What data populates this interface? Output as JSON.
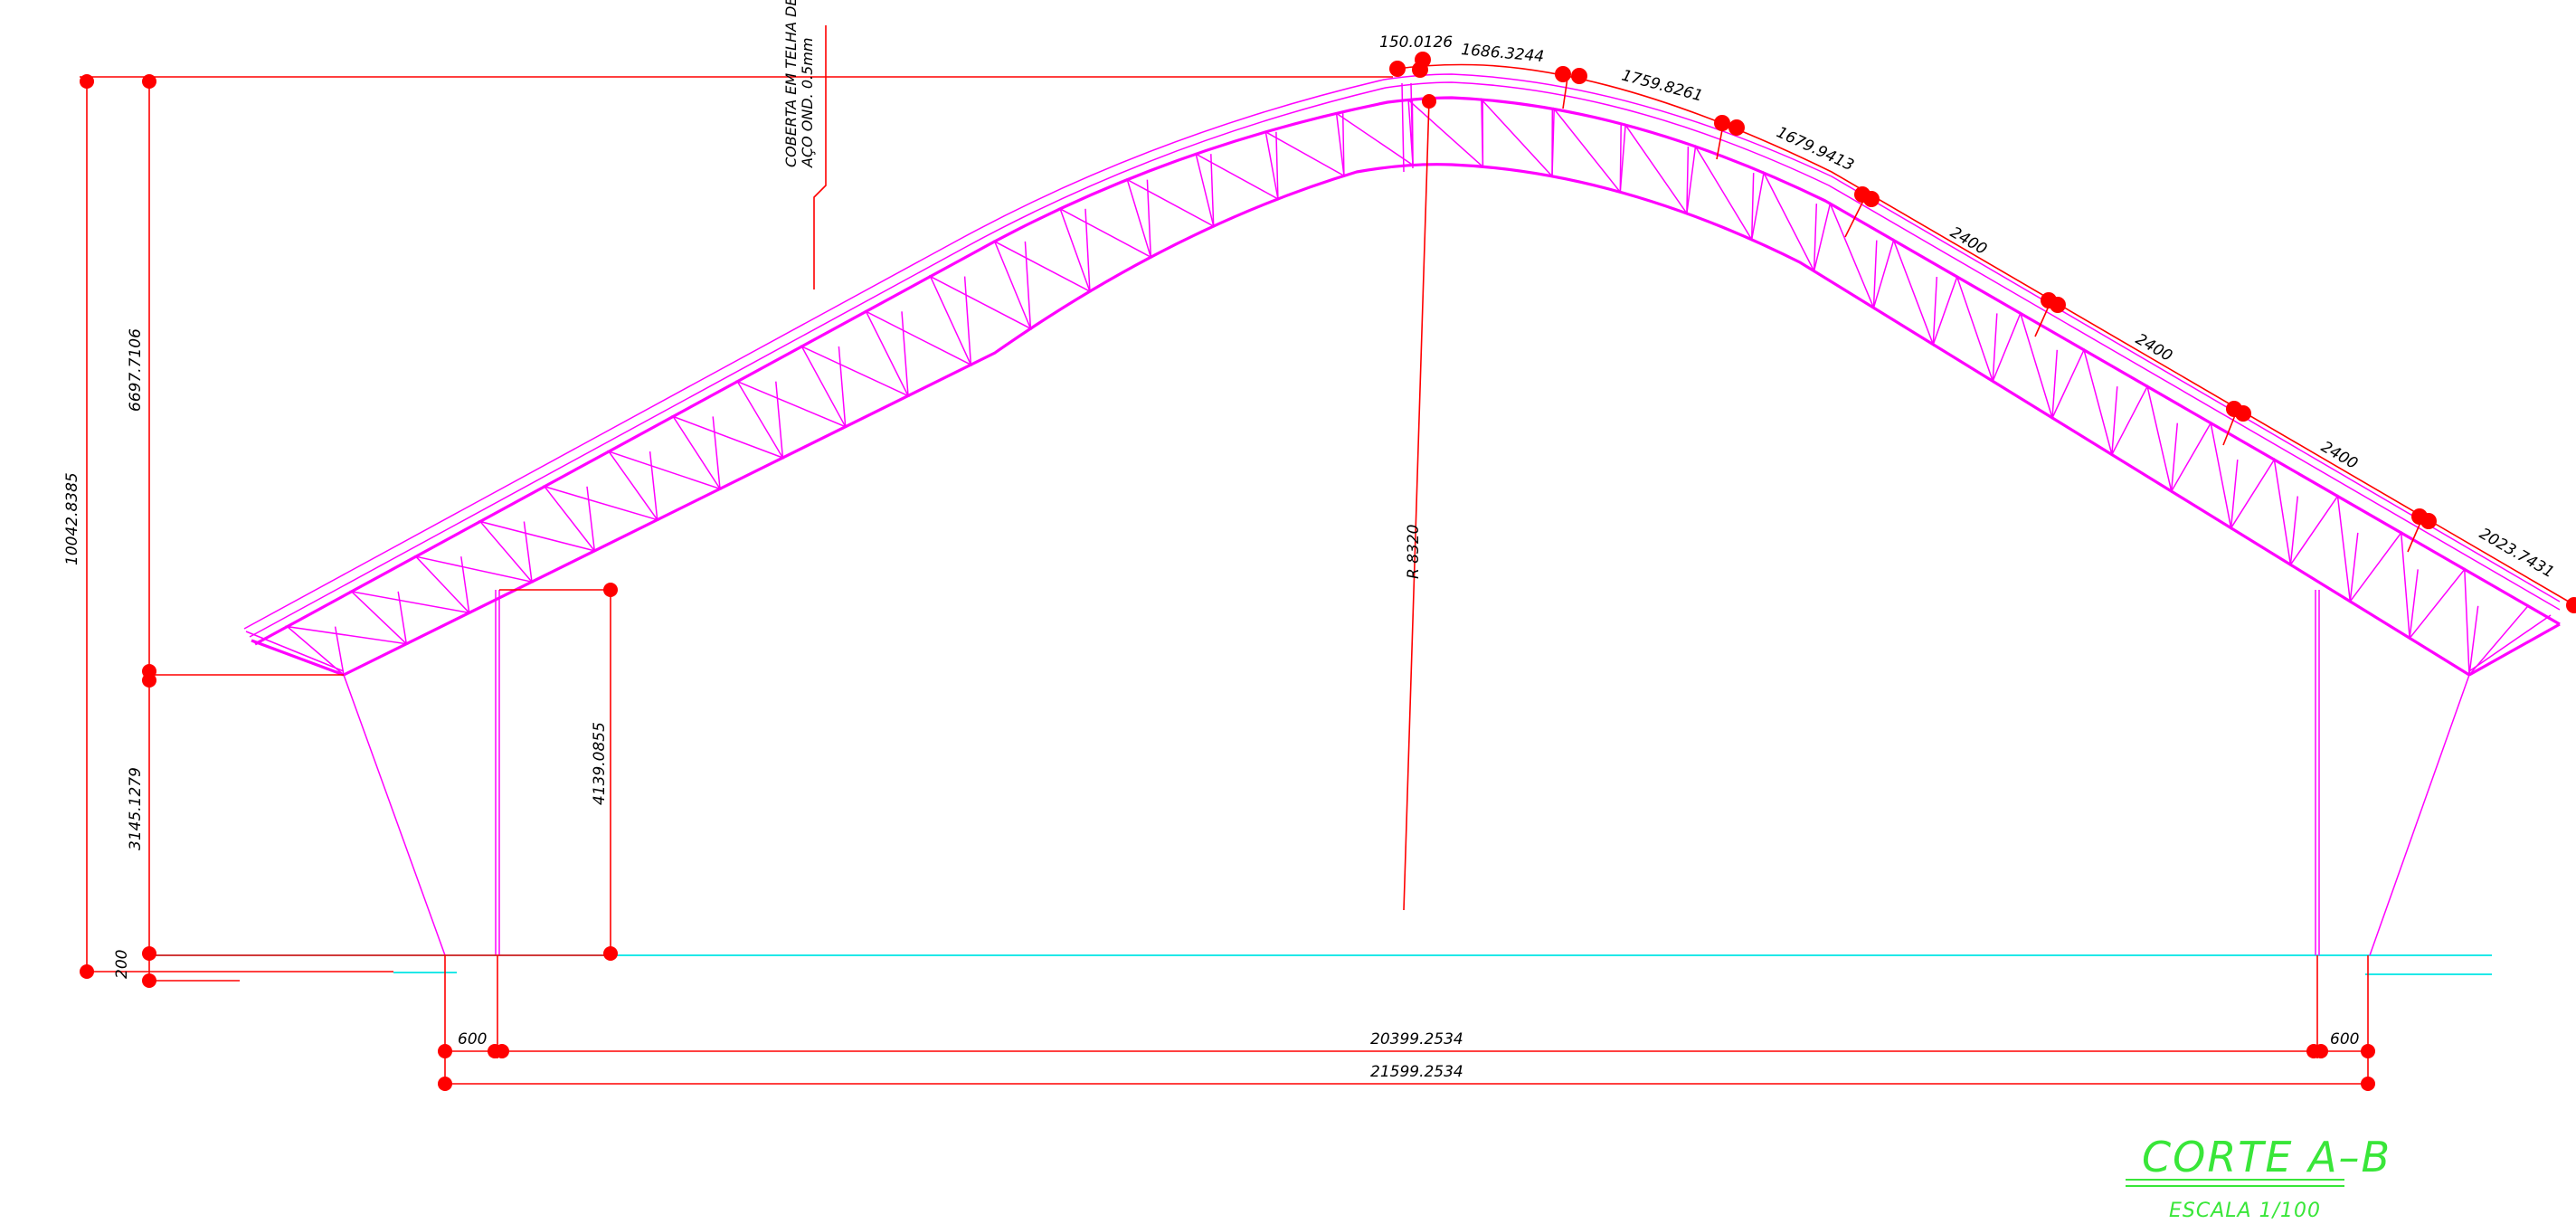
{
  "colors": {
    "background": "#ffffff",
    "dimension": "#ff0000",
    "structure": "#ff00ff",
    "ground": "#00e5e5",
    "title": "#39e639",
    "text": "#000000"
  },
  "note": {
    "line1": "COBERTA EM TELHA DE",
    "line2": "AÇO OND. 0.5mm"
  },
  "dimensions": {
    "total_height": "10042.8385",
    "upper_height": "6697.7106",
    "lower_height": "3145.1279",
    "base_offset": "200",
    "column_height": "4139.0855",
    "radius": "R 8320",
    "left_overhang": "600",
    "right_overhang": "600",
    "inner_span": "20399.2534",
    "outer_span": "21599.2534"
  },
  "arc_segments": [
    "150.0126",
    "1686.3244",
    "1759.8261",
    "1679.9413",
    "2400",
    "2400",
    "2400",
    "2023.7431"
  ],
  "title": {
    "main": "CORTE A–B",
    "scale": "ESCALA    1/100"
  }
}
